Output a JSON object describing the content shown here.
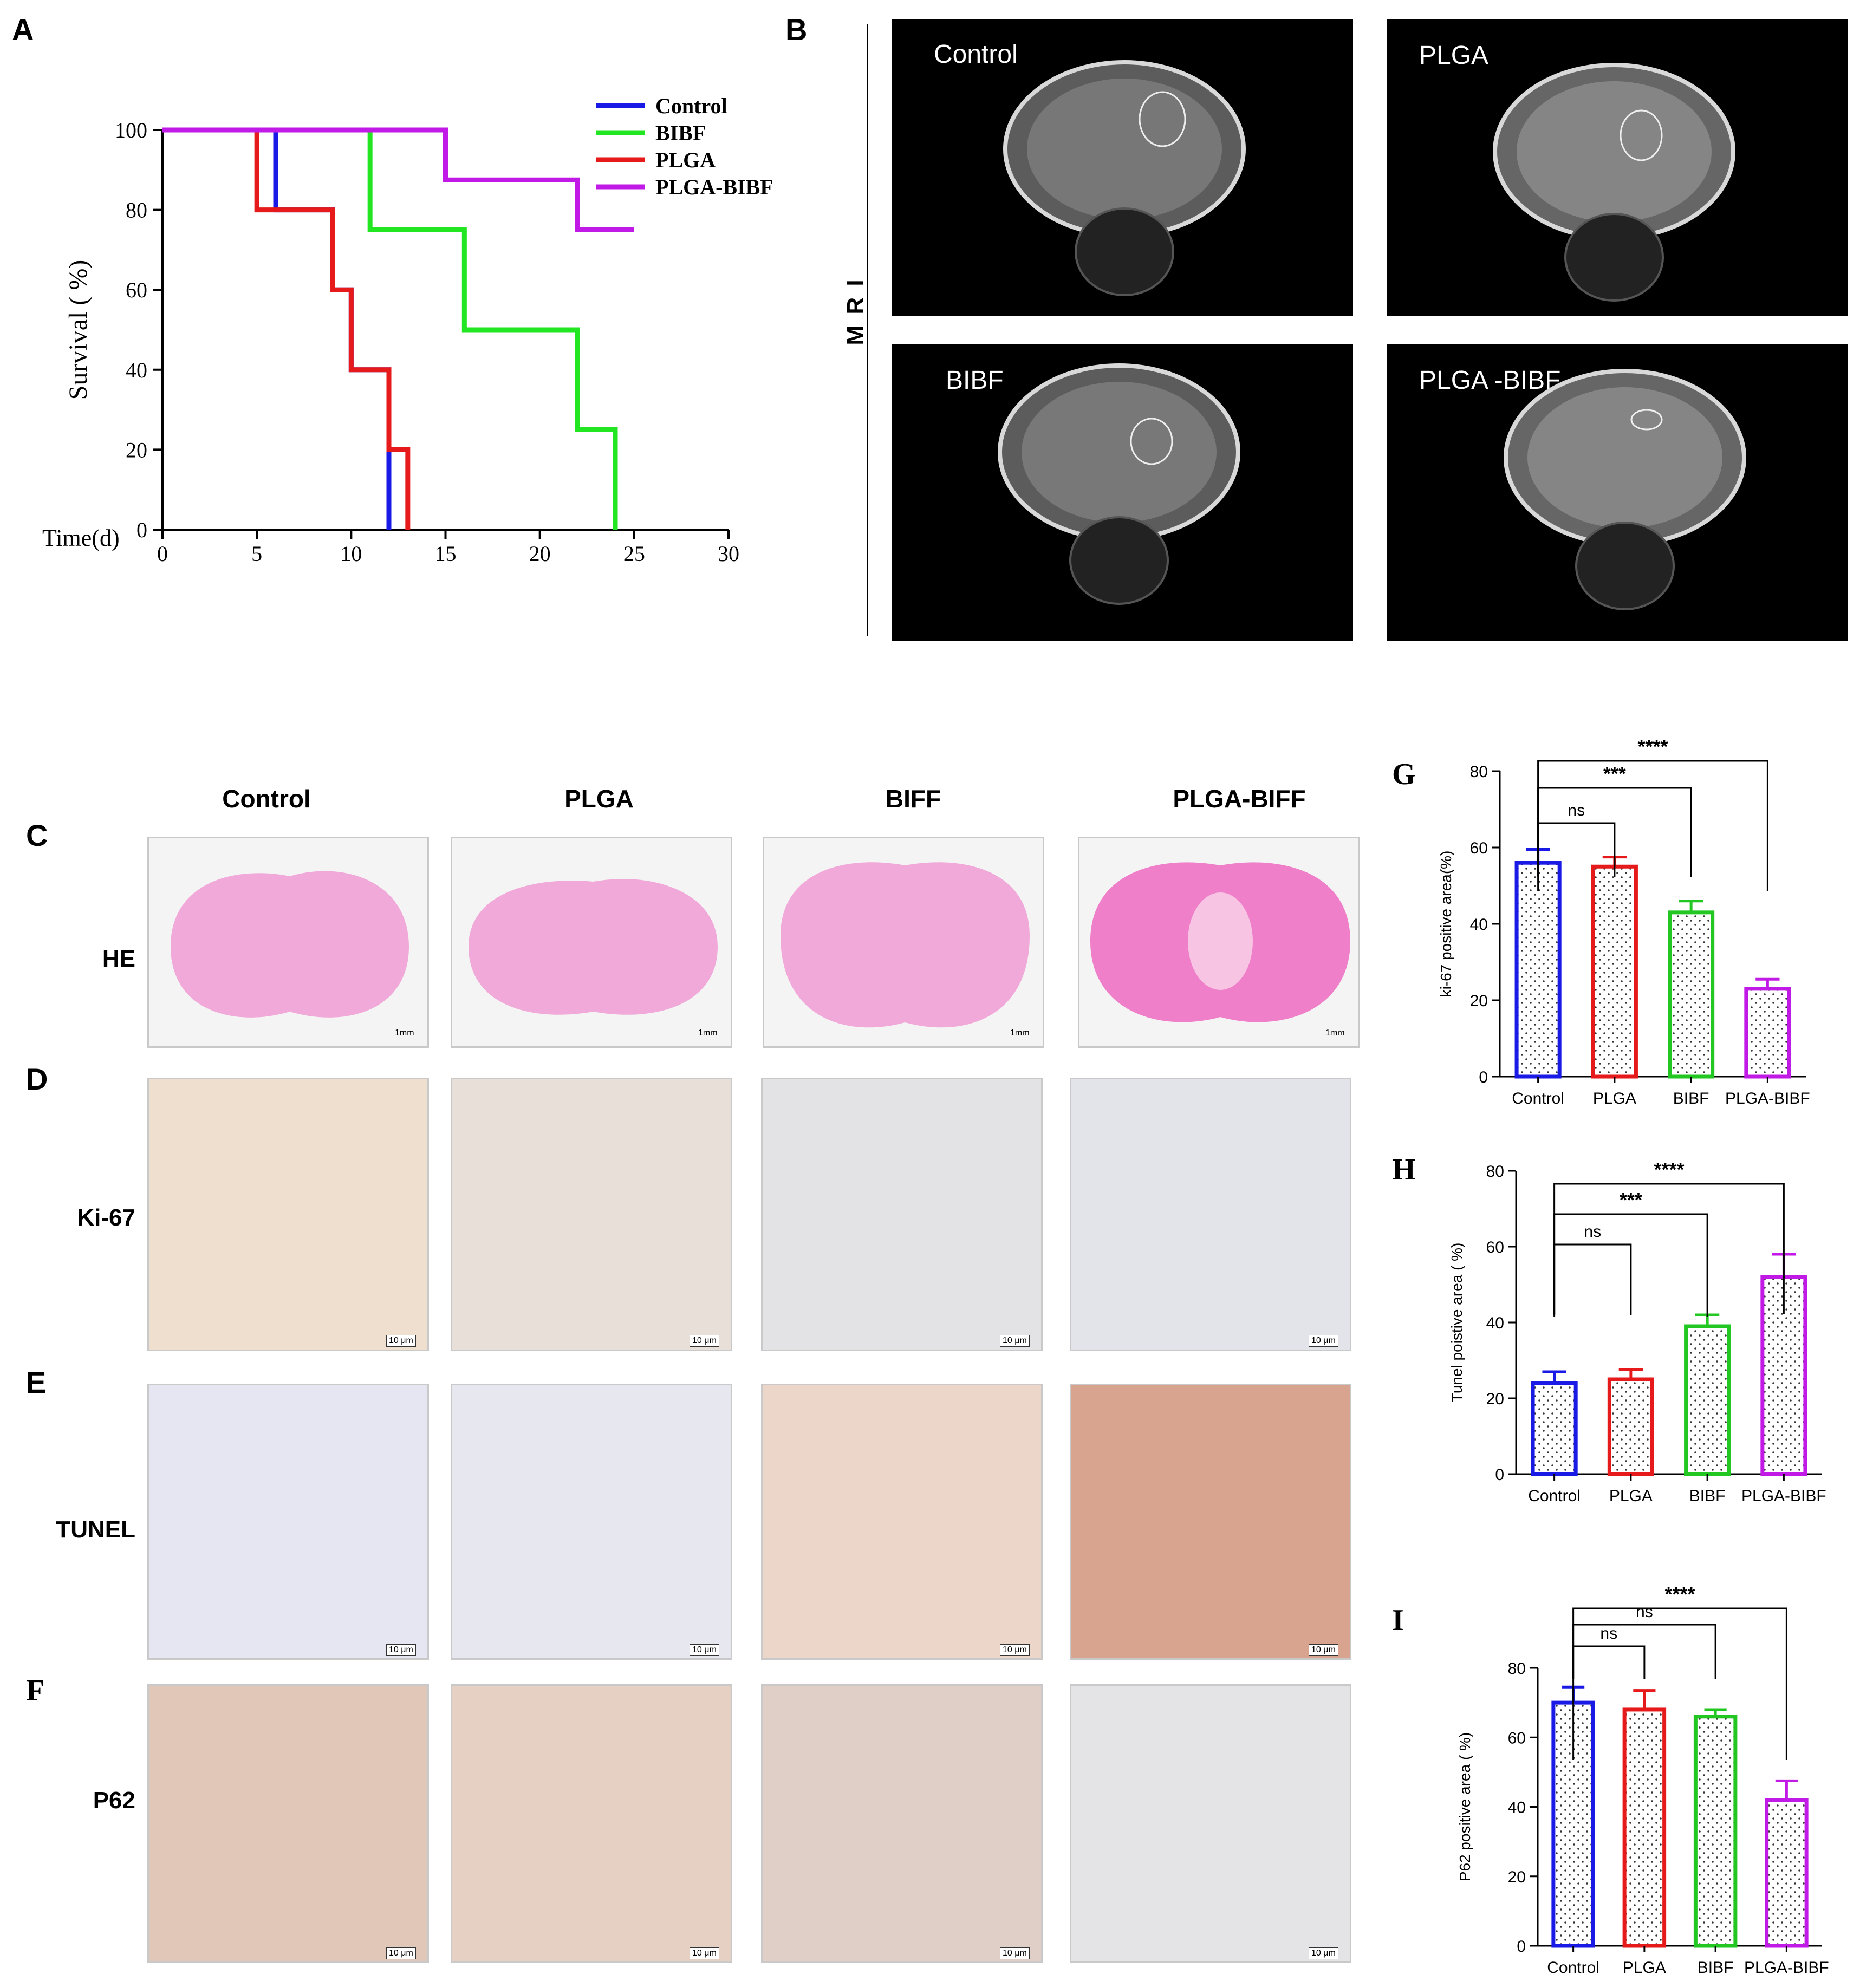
{
  "panels": {
    "A": "A",
    "B": "B",
    "C": "C",
    "D": "D",
    "E": "E",
    "F": "F",
    "G": "G",
    "H": "H",
    "I": "I"
  },
  "mri": {
    "side_label": "M R I",
    "tiles": [
      "Control",
      "PLGA",
      "BIBF",
      "PLGA -BIBF"
    ]
  },
  "histology": {
    "columns": [
      "Control",
      "PLGA",
      "BIFF",
      "PLGA-BIFF"
    ],
    "rows": [
      "HE",
      "Ki-67",
      "TUNEL",
      "P62"
    ],
    "scale_he": "1mm",
    "scale_ihc": "10 μm"
  },
  "chart_data": [
    {
      "id": "A",
      "type": "line",
      "step": true,
      "xlabel": "Time(d)",
      "ylabel": "Survival ( %)",
      "xlim": [
        0,
        30
      ],
      "ylim": [
        0,
        100
      ],
      "xticks": [
        0,
        5,
        10,
        15,
        20,
        25,
        30
      ],
      "yticks": [
        0,
        20,
        40,
        60,
        80,
        100
      ],
      "legend_position": "top-right",
      "series": [
        {
          "name": "Control",
          "color": "#1a1ae6",
          "x": [
            0,
            6,
            9,
            10,
            12
          ],
          "y": [
            100,
            80,
            60,
            40,
            0
          ]
        },
        {
          "name": "BIBF",
          "color": "#22e622",
          "x": [
            0,
            11,
            16,
            22,
            24
          ],
          "y": [
            100,
            75,
            50,
            25,
            0
          ]
        },
        {
          "name": "PLGA",
          "color": "#e61a1a",
          "x": [
            0,
            5,
            6,
            9,
            10,
            12,
            13
          ],
          "y": [
            100,
            80,
            80,
            60,
            40,
            20,
            0
          ]
        },
        {
          "name": "PLGA-BIBF",
          "color": "#c21ae6",
          "x": [
            0,
            15,
            22,
            25
          ],
          "y": [
            100,
            87.5,
            75,
            75
          ]
        }
      ]
    },
    {
      "id": "G",
      "type": "bar",
      "categories": [
        "Control",
        "PLGA",
        "BIBF",
        "PLGA-BIBF"
      ],
      "values": [
        56,
        55,
        43,
        23
      ],
      "errors": [
        3.5,
        2.5,
        3,
        2.5
      ],
      "colors": [
        "#1a1ae6",
        "#e61a1a",
        "#22c722",
        "#c21ae6"
      ],
      "ylabel": "ki-67 positive area(%)",
      "ylim": [
        0,
        80
      ],
      "yticks": [
        0,
        20,
        40,
        60,
        80
      ],
      "significance": [
        {
          "from": 0,
          "to": 1,
          "label": "ns"
        },
        {
          "from": 0,
          "to": 2,
          "label": "***"
        },
        {
          "from": 0,
          "to": 3,
          "label": "****"
        }
      ]
    },
    {
      "id": "H",
      "type": "bar",
      "categories": [
        "Control",
        "PLGA",
        "BIBF",
        "PLGA-BIBF"
      ],
      "values": [
        24,
        25,
        39,
        52
      ],
      "errors": [
        3,
        2.5,
        3,
        6
      ],
      "colors": [
        "#1a1ae6",
        "#e61a1a",
        "#22c722",
        "#c21ae6"
      ],
      "ylabel": "Tunel poistive area ( %)",
      "ylim": [
        0,
        80
      ],
      "yticks": [
        0,
        20,
        40,
        60,
        80
      ],
      "significance": [
        {
          "from": 0,
          "to": 1,
          "label": "ns"
        },
        {
          "from": 0,
          "to": 2,
          "label": "***"
        },
        {
          "from": 0,
          "to": 3,
          "label": "****"
        }
      ]
    },
    {
      "id": "I",
      "type": "bar",
      "categories": [
        "Control",
        "PLGA",
        "BIBF",
        "PLGA-BIBF"
      ],
      "values": [
        70,
        68,
        66,
        42
      ],
      "errors": [
        4.5,
        5.5,
        2,
        5.5
      ],
      "colors": [
        "#1a1ae6",
        "#e61a1a",
        "#22c722",
        "#c21ae6"
      ],
      "ylabel": "P62 positive area ( %)",
      "ylim": [
        0,
        80
      ],
      "yticks": [
        0,
        20,
        40,
        60,
        80
      ],
      "significance": [
        {
          "from": 0,
          "to": 1,
          "label": "ns"
        },
        {
          "from": 0,
          "to": 2,
          "label": "ns"
        },
        {
          "from": 0,
          "to": 3,
          "label": "****"
        }
      ]
    }
  ]
}
